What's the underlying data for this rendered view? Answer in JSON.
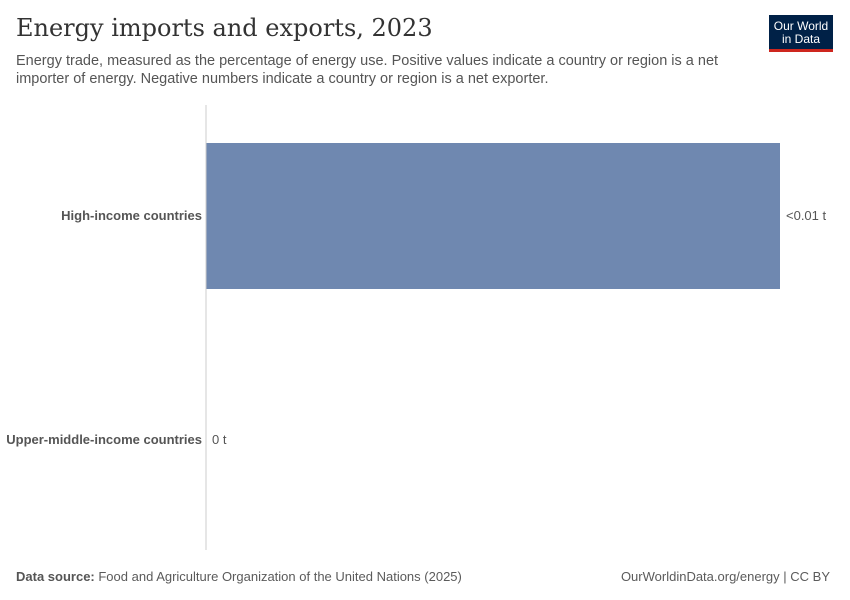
{
  "header": {
    "title": "Energy imports and exports, 2023",
    "subtitle": "Energy trade, measured as the percentage of energy use. Positive values indicate a country or region is a net importer of energy. Negative numbers indicate a country or region is a net exporter.",
    "logo": "Our World in Data"
  },
  "footer": {
    "source_label": "Data source:",
    "source_text": " Food and Agriculture Organization of the United Nations (2025)",
    "credit": "OurWorldinData.org/energy | CC BY"
  },
  "chart_data": {
    "type": "bar",
    "orientation": "horizontal",
    "categories": [
      "High-income countries",
      "Upper-middle-income countries"
    ],
    "values": [
      0.01,
      0
    ],
    "value_labels": [
      "<0.01 t",
      "0 t"
    ],
    "bar_color": "#6f88b0",
    "grid": false
  }
}
